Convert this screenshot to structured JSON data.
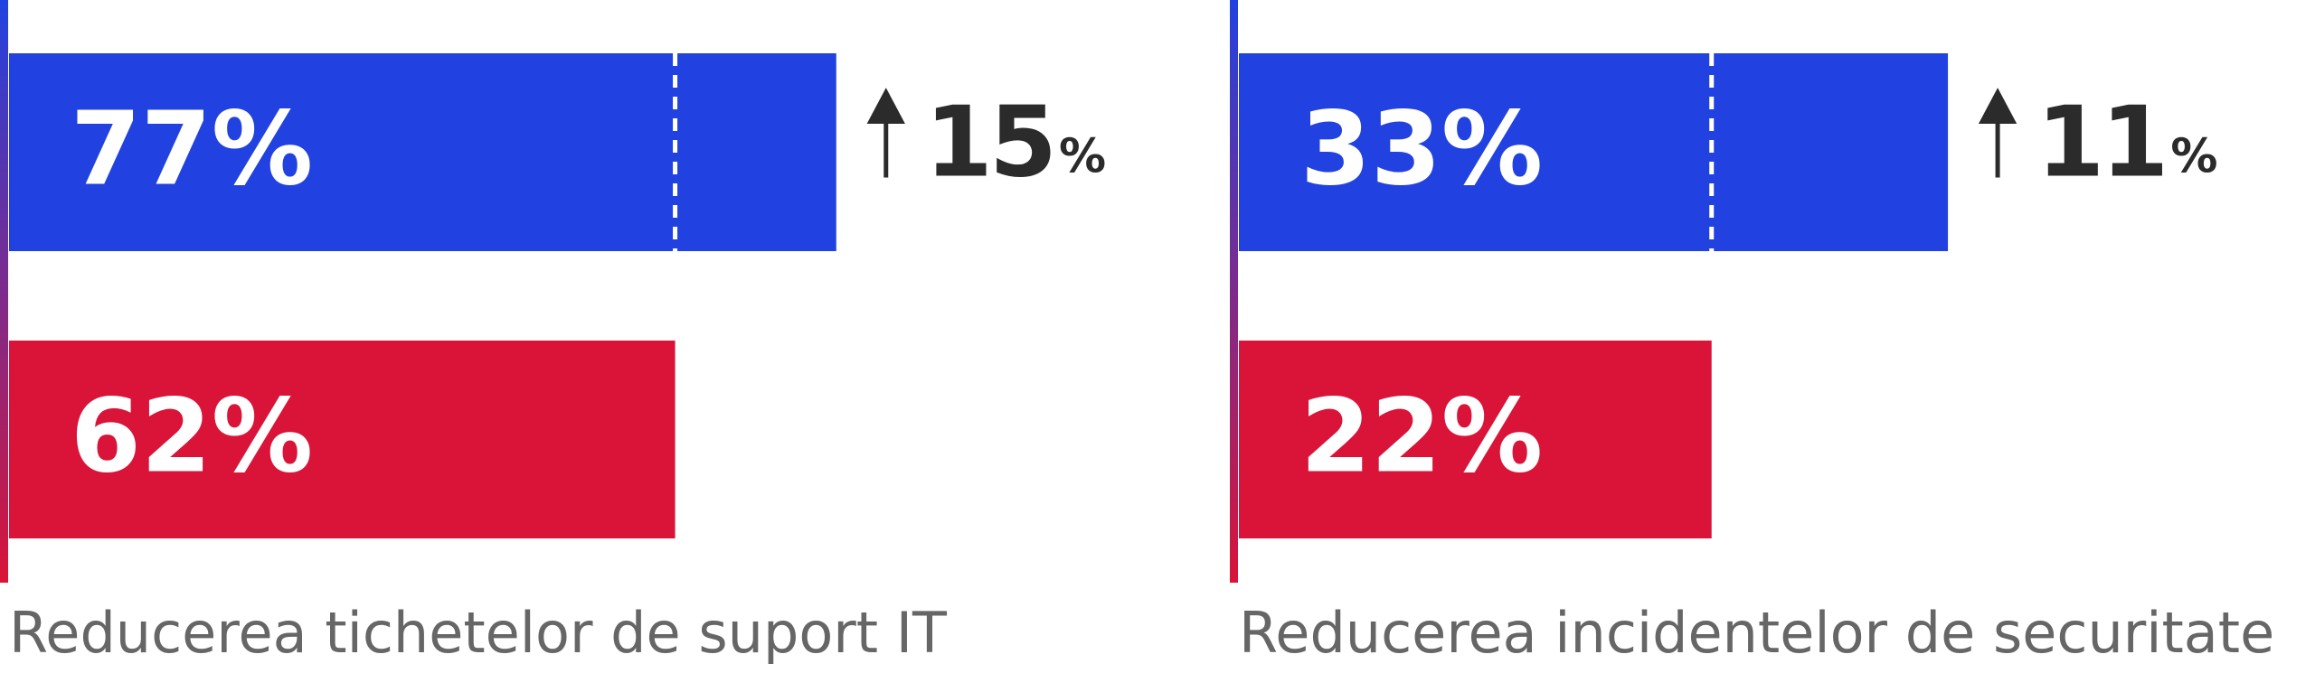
{
  "chart_data": [
    {
      "type": "bar",
      "xlabel": "Reducerea tichetelor de suport IT",
      "values": [
        77,
        62
      ],
      "value_labels": [
        "77%",
        "62%"
      ],
      "colors": [
        "#2142e0",
        "#d91438"
      ],
      "xlim": [
        0,
        100
      ],
      "delta": 15,
      "delta_unit": "%"
    },
    {
      "type": "bar",
      "xlabel": "Reducerea incidentelor de securitate",
      "values": [
        33,
        22
      ],
      "value_labels": [
        "33%",
        "22%"
      ],
      "colors": [
        "#2142e0",
        "#d91438"
      ],
      "xlim": [
        0,
        50
      ],
      "delta": 11,
      "delta_unit": "%"
    }
  ]
}
